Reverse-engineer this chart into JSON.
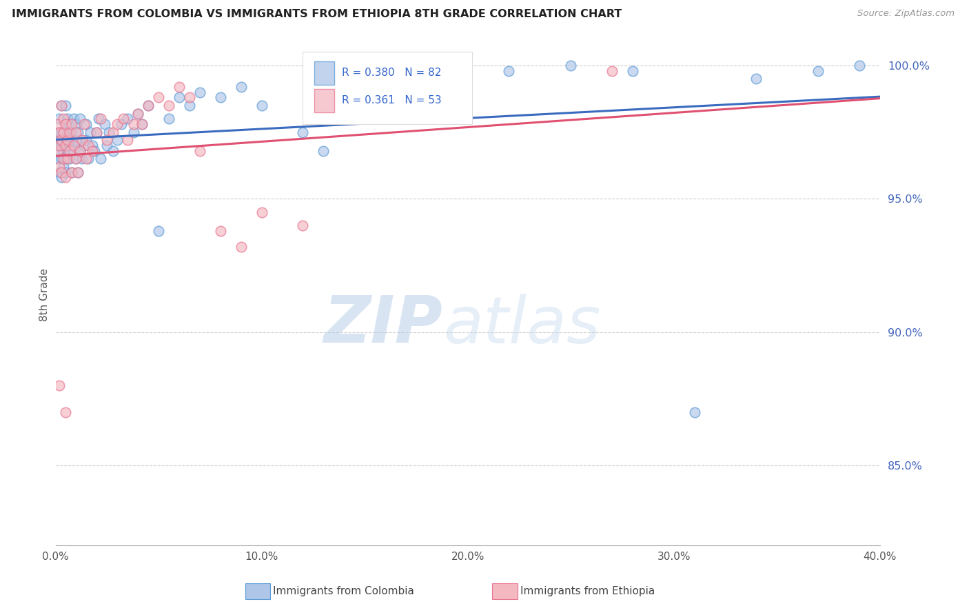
{
  "title": "IMMIGRANTS FROM COLOMBIA VS IMMIGRANTS FROM ETHIOPIA 8TH GRADE CORRELATION CHART",
  "source_text": "Source: ZipAtlas.com",
  "ylabel": "8th Grade",
  "x_label_colombia": "Immigrants from Colombia",
  "x_label_ethiopia": "Immigrants from Ethiopia",
  "xlim": [
    0.0,
    0.4
  ],
  "ylim": [
    0.82,
    1.008
  ],
  "yticks": [
    0.85,
    0.9,
    0.95,
    1.0
  ],
  "ytick_labels": [
    "85.0%",
    "90.0%",
    "95.0%",
    "100.0%"
  ],
  "xticks": [
    0.0,
    0.1,
    0.2,
    0.3,
    0.4
  ],
  "xtick_labels": [
    "0.0%",
    "10.0%",
    "20.0%",
    "30.0%",
    "40.0%"
  ],
  "colombia_R": 0.38,
  "colombia_N": 82,
  "ethiopia_R": 0.361,
  "ethiopia_N": 53,
  "colombia_color": "#aec6e8",
  "ethiopia_color": "#f4b8c1",
  "colombia_edge": "#5b9bd5",
  "ethiopia_edge": "#e87590",
  "trend_blue": "#3a6bbf",
  "trend_pink": "#e05070",
  "watermark_zip": "#c5d8ef",
  "watermark_atlas": "#c8d8ee",
  "colombia_x": [
    0.001,
    0.001,
    0.001,
    0.002,
    0.002,
    0.002,
    0.002,
    0.003,
    0.003,
    0.003,
    0.003,
    0.003,
    0.004,
    0.004,
    0.004,
    0.004,
    0.005,
    0.005,
    0.005,
    0.005,
    0.005,
    0.006,
    0.006,
    0.006,
    0.006,
    0.007,
    0.007,
    0.007,
    0.008,
    0.008,
    0.008,
    0.009,
    0.009,
    0.01,
    0.01,
    0.01,
    0.011,
    0.011,
    0.012,
    0.012,
    0.013,
    0.014,
    0.015,
    0.015,
    0.016,
    0.017,
    0.018,
    0.019,
    0.02,
    0.021,
    0.022,
    0.024,
    0.025,
    0.026,
    0.028,
    0.03,
    0.032,
    0.035,
    0.038,
    0.04,
    0.042,
    0.045,
    0.05,
    0.055,
    0.06,
    0.065,
    0.07,
    0.08,
    0.09,
    0.1,
    0.12,
    0.13,
    0.15,
    0.17,
    0.19,
    0.22,
    0.25,
    0.28,
    0.31,
    0.34,
    0.37,
    0.39
  ],
  "colombia_y": [
    0.97,
    0.965,
    0.975,
    0.968,
    0.972,
    0.96,
    0.98,
    0.965,
    0.97,
    0.975,
    0.958,
    0.985,
    0.962,
    0.97,
    0.975,
    0.968,
    0.972,
    0.965,
    0.978,
    0.96,
    0.985,
    0.968,
    0.975,
    0.97,
    0.98,
    0.972,
    0.965,
    0.978,
    0.96,
    0.97,
    0.975,
    0.968,
    0.98,
    0.965,
    0.972,
    0.978,
    0.96,
    0.975,
    0.968,
    0.98,
    0.965,
    0.97,
    0.972,
    0.978,
    0.965,
    0.975,
    0.97,
    0.968,
    0.975,
    0.98,
    0.965,
    0.978,
    0.97,
    0.975,
    0.968,
    0.972,
    0.978,
    0.98,
    0.975,
    0.982,
    0.978,
    0.985,
    0.938,
    0.98,
    0.988,
    0.985,
    0.99,
    0.988,
    0.992,
    0.985,
    0.975,
    0.968,
    0.99,
    0.995,
    0.998,
    0.998,
    1.0,
    0.998,
    0.87,
    0.995,
    0.998,
    1.0
  ],
  "ethiopia_x": [
    0.001,
    0.001,
    0.002,
    0.002,
    0.002,
    0.003,
    0.003,
    0.003,
    0.004,
    0.004,
    0.004,
    0.005,
    0.005,
    0.005,
    0.006,
    0.006,
    0.007,
    0.007,
    0.008,
    0.008,
    0.009,
    0.01,
    0.01,
    0.011,
    0.012,
    0.013,
    0.014,
    0.015,
    0.016,
    0.018,
    0.02,
    0.022,
    0.025,
    0.028,
    0.03,
    0.033,
    0.035,
    0.038,
    0.04,
    0.042,
    0.045,
    0.05,
    0.055,
    0.06,
    0.065,
    0.07,
    0.08,
    0.09,
    0.1,
    0.12,
    0.002,
    0.005,
    0.27
  ],
  "ethiopia_y": [
    0.968,
    0.978,
    0.962,
    0.975,
    0.97,
    0.96,
    0.972,
    0.985,
    0.965,
    0.975,
    0.98,
    0.958,
    0.97,
    0.978,
    0.965,
    0.972,
    0.968,
    0.975,
    0.96,
    0.978,
    0.97,
    0.965,
    0.975,
    0.96,
    0.968,
    0.972,
    0.978,
    0.965,
    0.97,
    0.968,
    0.975,
    0.98,
    0.972,
    0.975,
    0.978,
    0.98,
    0.972,
    0.978,
    0.982,
    0.978,
    0.985,
    0.988,
    0.985,
    0.992,
    0.988,
    0.968,
    0.938,
    0.932,
    0.945,
    0.94,
    0.88,
    0.87,
    0.998
  ]
}
